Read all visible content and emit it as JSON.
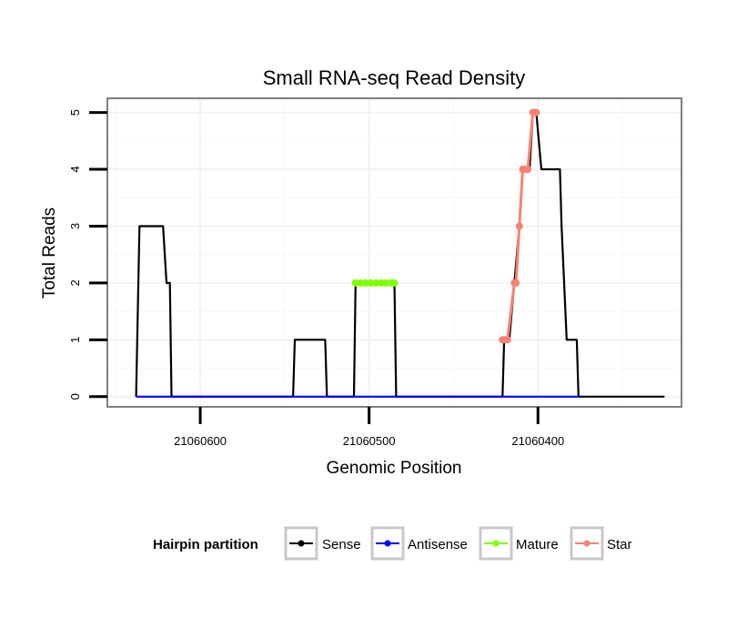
{
  "chart_data": {
    "type": "line",
    "title": "Small RNA-seq Read Density",
    "xlabel": "Genomic Position",
    "ylabel": "Total Reads",
    "x_reversed": true,
    "xlim": [
      21060655,
      21060315
    ],
    "ylim": [
      -0.18,
      5.25
    ],
    "xticks": [
      21060600,
      21060500,
      21060400
    ],
    "xtick_labels": [
      "21060600",
      "21060500",
      "21060400"
    ],
    "yticks": [
      0,
      1,
      2,
      3,
      4,
      5
    ],
    "ytick_labels": [
      "0",
      "1",
      "2",
      "3",
      "4",
      "5"
    ],
    "grid": true,
    "legend": {
      "title": "Hairpin partition",
      "position": "bottom",
      "entries": [
        "Sense",
        "Antisense",
        "Mature",
        "Star"
      ]
    },
    "series": [
      {
        "name": "Sense",
        "color": "#000000",
        "style": "line",
        "points": [
          [
            21060638,
            0
          ],
          [
            21060636,
            3
          ],
          [
            21060622,
            3
          ],
          [
            21060620,
            2
          ],
          [
            21060618,
            2
          ],
          [
            21060617,
            0
          ],
          [
            21060545,
            0
          ],
          [
            21060544,
            1
          ],
          [
            21060526,
            1
          ],
          [
            21060525,
            0
          ],
          [
            21060509,
            0
          ],
          [
            21060508,
            2
          ],
          [
            21060485,
            2
          ],
          [
            21060484,
            0
          ],
          [
            21060421,
            0
          ],
          [
            21060420,
            1
          ],
          [
            21060417,
            1
          ],
          [
            21060414,
            2
          ],
          [
            21060411,
            3
          ],
          [
            21060409,
            4
          ],
          [
            21060405,
            4
          ],
          [
            21060403,
            5
          ],
          [
            21060401,
            5
          ],
          [
            21060398,
            4
          ],
          [
            21060387,
            4
          ],
          [
            21060386,
            3
          ],
          [
            21060383,
            1
          ],
          [
            21060377,
            1
          ],
          [
            21060376,
            0
          ],
          [
            21060325,
            0
          ]
        ]
      },
      {
        "name": "Antisense",
        "color": "#0000ff",
        "style": "line",
        "points": [
          [
            21060638,
            0
          ],
          [
            21060617,
            0
          ],
          [
            21060545,
            0
          ],
          [
            21060525,
            0
          ],
          [
            21060509,
            0
          ],
          [
            21060484,
            0
          ],
          [
            21060421,
            0
          ],
          [
            21060376,
            0
          ]
        ]
      },
      {
        "name": "Mature",
        "color": "#7fff00",
        "style": "line-points",
        "points": [
          [
            21060508,
            2
          ],
          [
            21060505,
            2
          ],
          [
            21060502,
            2
          ],
          [
            21060499,
            2
          ],
          [
            21060496,
            2
          ],
          [
            21060493,
            2
          ],
          [
            21060490,
            2
          ],
          [
            21060487,
            2
          ],
          [
            21060485,
            2
          ]
        ]
      },
      {
        "name": "Star",
        "color": "#fa8072",
        "style": "line-points",
        "points": [
          [
            21060421,
            1
          ],
          [
            21060420,
            1
          ],
          [
            21060418,
            1
          ],
          [
            21060414,
            2
          ],
          [
            21060413,
            2
          ],
          [
            21060411,
            3
          ],
          [
            21060409,
            4
          ],
          [
            21060408,
            4
          ],
          [
            21060406,
            4
          ],
          [
            21060403,
            5
          ],
          [
            21060402,
            5
          ],
          [
            21060401,
            5
          ]
        ]
      }
    ]
  }
}
